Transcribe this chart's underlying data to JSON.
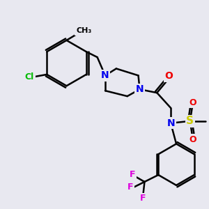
{
  "background_color": "#e8e8f0",
  "atom_colors": {
    "N": "#0000ee",
    "O": "#ee0000",
    "S": "#cccc00",
    "Cl": "#00bb00",
    "F": "#dd00dd",
    "C": "#000000"
  },
  "bond_color": "#000000",
  "figsize": [
    3.0,
    3.0
  ],
  "dpi": 100
}
